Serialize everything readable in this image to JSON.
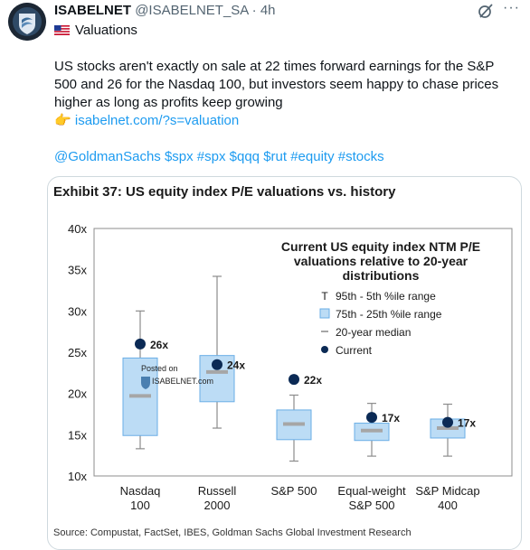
{
  "author": {
    "display_name": "ISABELNET",
    "handle": "@ISABELNET_SA",
    "separator": "·",
    "time": "4h"
  },
  "post": {
    "flag_icon": "us-flag-icon",
    "title": "Valuations",
    "text": "US stocks aren't exactly on sale at 22 times forward earnings for the S&P 500 and 26 for the Nasdaq 100, but investors seem happy to chase prices higher as long as profits keep growing",
    "pointer_emoji": "👉",
    "link_text": "isabelnet.com/?s=valuation",
    "hashtags": "@GoldmanSachs $spx #spx $qqq $rut #equity #stocks"
  },
  "colors": {
    "accent": "#1d9bf0",
    "box_fill": "#bcdcf5",
    "box_stroke": "#6aaee6",
    "median": "#a6a6a6",
    "current_dot": "#0b2a55"
  },
  "card": {
    "exhibit_title": "Exhibit 37: US equity index P/E valuations vs. history",
    "source": "Source: Compustat, FactSet, IBES, Goldman Sachs Global Investment Research",
    "watermark_line1": "Posted on",
    "watermark_line2": "ISABELNET.com"
  },
  "chart_data": {
    "type": "boxplot",
    "title": "Current US equity index NTM P/E valuations relative to 20-year distributions",
    "title_lines": [
      "Current US equity index NTM P/E",
      "valuations relative to 20-year",
      "distributions"
    ],
    "ylim": [
      10,
      40
    ],
    "yticks": [
      "40x",
      "35x",
      "30x",
      "25x",
      "20x",
      "15x",
      "10x"
    ],
    "yticks_values": [
      40,
      35,
      30,
      25,
      20,
      15,
      10
    ],
    "legend": [
      {
        "symbol": "T",
        "label": "95th - 5th %ile range"
      },
      {
        "symbol": "box",
        "label": "75th - 25th %ile range"
      },
      {
        "symbol": "dash",
        "label": "20-year median"
      },
      {
        "symbol": "dot",
        "label": "Current"
      }
    ],
    "categories": [
      {
        "label1": "Nasdaq",
        "label2": "100",
        "p5": 13.3,
        "p25": 14.9,
        "median": 19.7,
        "p75": 24.3,
        "p95": 30.0,
        "current": 26.0,
        "current_label": "26x"
      },
      {
        "label1": "Russell",
        "label2": "2000",
        "p5": 15.8,
        "p25": 19.0,
        "median": 22.6,
        "p75": 24.6,
        "p95": 34.2,
        "current": 23.5,
        "current_label": "24x"
      },
      {
        "label1": "S&P 500",
        "label2": "",
        "p5": 11.8,
        "p25": 14.4,
        "median": 16.3,
        "p75": 18.0,
        "p95": 19.8,
        "current": 21.7,
        "current_label": "22x"
      },
      {
        "label1": "Equal-weight",
        "label2": "S&P 500",
        "p5": 12.4,
        "p25": 14.3,
        "median": 15.5,
        "p75": 16.4,
        "p95": 18.8,
        "current": 17.1,
        "current_label": "17x"
      },
      {
        "label1": "S&P Midcap",
        "label2": "400",
        "p5": 12.4,
        "p25": 14.6,
        "median": 15.8,
        "p75": 16.9,
        "p95": 18.7,
        "current": 16.5,
        "current_label": "17x"
      }
    ]
  }
}
